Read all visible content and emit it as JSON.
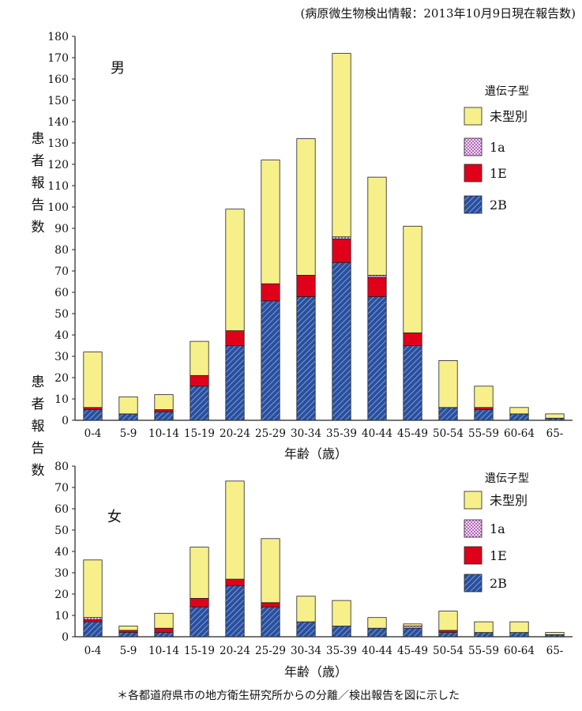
{
  "header": "(病原微生物検出情報：2013年10月9日現在報告数)",
  "footnote": "＊各都道府県市の地方衛生研究所からの分離／検出報告を図に示した",
  "colors": {
    "未型別": "#f7f08a",
    "1a": "#e8b8e8",
    "1E": "#e0001a",
    "2B": "#2a4f9c"
  },
  "chart_data": [
    {
      "type": "bar",
      "stacked": true,
      "panel_label": "男",
      "ylabel": "患者報告数",
      "xlabel": "年齢（歳）",
      "ylim": [
        0,
        180
      ],
      "ytick_step": 10,
      "legend_title": "遺伝子型",
      "legend_position": "top-right",
      "categories": [
        "0-4",
        "5-9",
        "10-14",
        "15-19",
        "20-24",
        "25-29",
        "30-34",
        "35-39",
        "40-44",
        "45-49",
        "50-54",
        "55-59",
        "60-64",
        "65-"
      ],
      "series": [
        {
          "name": "2B",
          "values": [
            5,
            3,
            4,
            16,
            35,
            56,
            58,
            74,
            58,
            35,
            6,
            5,
            3,
            1
          ]
        },
        {
          "name": "1E",
          "values": [
            1,
            0,
            1,
            5,
            7,
            8,
            10,
            11,
            9,
            6,
            0,
            1,
            0,
            0
          ]
        },
        {
          "name": "1a",
          "values": [
            0,
            0,
            0,
            0,
            0,
            0,
            0,
            1,
            1,
            0,
            0,
            0,
            0,
            0
          ]
        },
        {
          "name": "未型別",
          "values": [
            26,
            8,
            7,
            16,
            57,
            58,
            64,
            86,
            46,
            50,
            22,
            10,
            3,
            2
          ]
        }
      ]
    },
    {
      "type": "bar",
      "stacked": true,
      "panel_label": "女",
      "ylabel": "患者報告数",
      "xlabel": "年齢（歳）",
      "ylim": [
        0,
        80
      ],
      "ytick_step": 10,
      "legend_title": "遺伝子型",
      "legend_position": "top-right",
      "categories": [
        "0-4",
        "5-9",
        "10-14",
        "15-19",
        "20-24",
        "25-29",
        "30-34",
        "35-39",
        "40-44",
        "45-49",
        "50-54",
        "55-59",
        "60-64",
        "65-"
      ],
      "series": [
        {
          "name": "2B",
          "values": [
            7,
            2,
            2,
            14,
            24,
            14,
            7,
            5,
            4,
            4,
            2,
            2,
            2,
            1
          ]
        },
        {
          "name": "1E",
          "values": [
            1,
            1,
            2,
            4,
            3,
            2,
            0,
            0,
            0,
            0,
            1,
            0,
            0,
            0
          ]
        },
        {
          "name": "1a",
          "values": [
            1,
            0,
            0,
            0,
            0,
            0,
            0,
            0,
            0,
            1,
            0,
            0,
            0,
            0
          ]
        },
        {
          "name": "未型別",
          "values": [
            27,
            2,
            7,
            24,
            46,
            30,
            12,
            12,
            5,
            1,
            9,
            5,
            5,
            1
          ]
        }
      ]
    }
  ]
}
